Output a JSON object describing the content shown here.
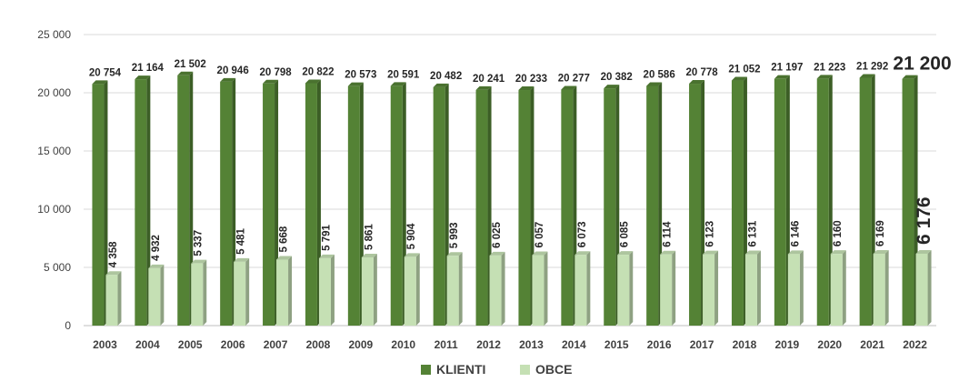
{
  "chart_data": {
    "type": "bar",
    "categories": [
      "2003",
      "2004",
      "2005",
      "2006",
      "2007",
      "2008",
      "2009",
      "2010",
      "2011",
      "2012",
      "2013",
      "2014",
      "2015",
      "2016",
      "2017",
      "2018",
      "2019",
      "2020",
      "2021",
      "2022"
    ],
    "series": [
      {
        "name": "KLIENTI",
        "color": "#548235",
        "values": [
          20754,
          21164,
          21502,
          20946,
          20798,
          20822,
          20573,
          20591,
          20482,
          20241,
          20233,
          20277,
          20382,
          20586,
          20778,
          21052,
          21197,
          21223,
          21292,
          21200
        ],
        "labels": [
          "20 754",
          "21 164",
          "21 502",
          "20 946",
          "20 798",
          "20 822",
          "20 573",
          "20 591",
          "20 482",
          "20 241",
          "20 233",
          "20 277",
          "20 382",
          "20 586",
          "20 778",
          "21 052",
          "21 197",
          "21 223",
          "21 292",
          "21 200"
        ]
      },
      {
        "name": "OBCE",
        "color": "#c5e0b4",
        "values": [
          4358,
          4932,
          5337,
          5481,
          5668,
          5791,
          5861,
          5904,
          5993,
          6025,
          6057,
          6073,
          6085,
          6114,
          6123,
          6131,
          6146,
          6160,
          6169,
          6176
        ],
        "labels": [
          "4 358",
          "4 932",
          "5 337",
          "5 481",
          "5 668",
          "5 791",
          "5 861",
          "5 904",
          "5 993",
          "6 025",
          "6 057",
          "6 073",
          "6 085",
          "6 114",
          "6 123",
          "6 131",
          "6 146",
          "6 160",
          "6 169",
          "6 176"
        ]
      }
    ],
    "ylim": [
      0,
      25000
    ],
    "yticks": [
      0,
      5000,
      10000,
      15000,
      20000,
      25000
    ],
    "ytick_labels": [
      "0",
      "5 000",
      "10 000",
      "15 000",
      "20 000",
      "25 000"
    ],
    "grid": true,
    "legend": "bottom",
    "highlight_last": true
  }
}
